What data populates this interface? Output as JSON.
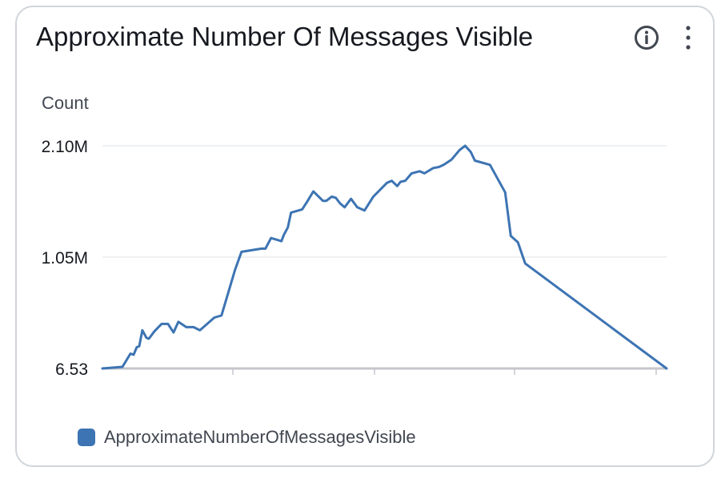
{
  "widget": {
    "title": "Approximate Number Of Messages Visible",
    "info_icon": "info-icon",
    "menu_icon": "more-vertical-icon"
  },
  "colors": {
    "series": "#3d74b3",
    "grid": "#e9ebed",
    "baseline": "#c6c6cd",
    "border": "#d1d5db"
  },
  "chart_data": {
    "type": "line",
    "ylabel": "Count",
    "y_ticks": [
      {
        "value": 6.53,
        "label": "6.53"
      },
      {
        "value": 1050000,
        "label": "1.05M"
      },
      {
        "value": 2100000,
        "label": "2.10M"
      }
    ],
    "ylim": [
      6.53,
      2100000
    ],
    "x_ticks_count": 4,
    "grid": "horizontal",
    "legend": "bottom-left",
    "x_range": [
      0,
      100
    ],
    "series": [
      {
        "name": "ApproximateNumberOfMessagesVisible",
        "x": [
          0,
          3.54,
          4.96,
          5.53,
          6.09,
          6.52,
          7.08,
          7.79,
          8.22,
          9.21,
          10.48,
          11.61,
          12.61,
          13.46,
          14.87,
          16.15,
          17.28,
          19.83,
          21.1,
          23.51,
          24.65,
          28.19,
          28.9,
          29.89,
          31.73,
          32.15,
          32.86,
          33.43,
          35.41,
          36.26,
          37.39,
          39.09,
          39.66,
          40.65,
          41.36,
          42.07,
          42.92,
          44.05,
          45.18,
          46.46,
          48.02,
          50.42,
          51.27,
          52.26,
          52.83,
          53.68,
          54.81,
          56.23,
          57.08,
          58.64,
          59.63,
          60.48,
          61.89,
          63.31,
          64.3,
          65.3,
          66.01,
          68.7,
          71.39,
          72.38,
          73.65,
          74.93,
          100
        ],
        "y": [
          6.53,
          15000,
          140000,
          130000,
          200000,
          210000,
          360000,
          290000,
          280000,
          350000,
          420000,
          420000,
          340000,
          440000,
          390000,
          390000,
          360000,
          480000,
          500000,
          930000,
          1100000,
          1130000,
          1130000,
          1230000,
          1200000,
          1260000,
          1330000,
          1470000,
          1500000,
          1570000,
          1670000,
          1580000,
          1580000,
          1620000,
          1610000,
          1560000,
          1520000,
          1600000,
          1520000,
          1490000,
          1620000,
          1750000,
          1770000,
          1720000,
          1760000,
          1770000,
          1840000,
          1860000,
          1840000,
          1890000,
          1900000,
          1920000,
          1970000,
          2060000,
          2100000,
          2040000,
          1960000,
          1920000,
          1660000,
          1250000,
          1190000,
          990000,
          6.53
        ]
      }
    ]
  }
}
